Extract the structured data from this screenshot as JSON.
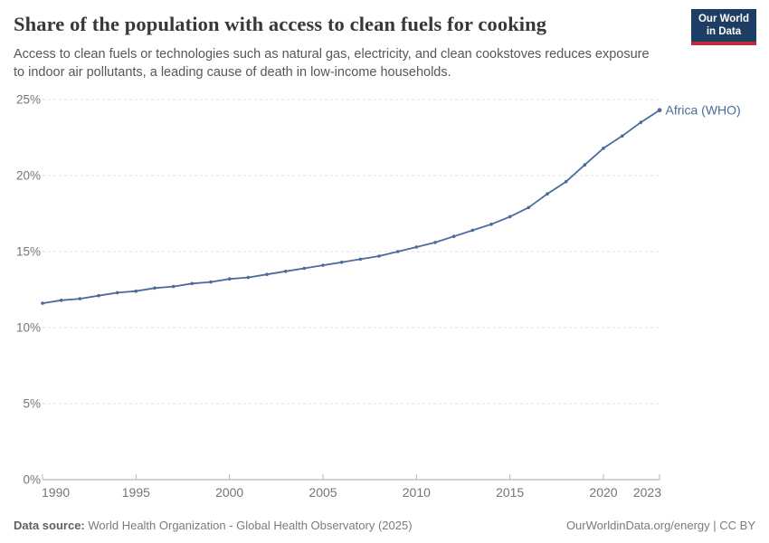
{
  "header": {
    "title": "Share of the population with access to clean fuels for cooking",
    "subtitle_lines": [
      "Access to clean fuels or technologies such as natural gas, electricity, and clean cookstoves reduces exposure",
      "to indoor air pollutants, a leading cause of death in low-income households."
    ]
  },
  "logo": {
    "line1": "Our World",
    "line2": "in Data",
    "bg_color": "#1d3d63",
    "accent_color": "#bf2b39"
  },
  "chart_data": {
    "type": "line",
    "title": "Share of the population with access to clean fuels for cooking",
    "x": [
      1990,
      1991,
      1992,
      1993,
      1994,
      1995,
      1996,
      1997,
      1998,
      1999,
      2000,
      2001,
      2002,
      2003,
      2004,
      2005,
      2006,
      2007,
      2008,
      2009,
      2010,
      2011,
      2012,
      2013,
      2014,
      2015,
      2016,
      2017,
      2018,
      2019,
      2020,
      2021,
      2022,
      2023
    ],
    "series": [
      {
        "name": "Africa (WHO)",
        "color": "#4C6A9C",
        "values": [
          11.6,
          11.8,
          11.9,
          12.1,
          12.3,
          12.4,
          12.6,
          12.7,
          12.9,
          13.0,
          13.2,
          13.3,
          13.5,
          13.7,
          13.9,
          14.1,
          14.3,
          14.5,
          14.7,
          15.0,
          15.3,
          15.6,
          16.0,
          16.4,
          16.8,
          17.3,
          17.9,
          18.8,
          19.6,
          20.7,
          21.8,
          22.6,
          23.5,
          24.3
        ]
      }
    ],
    "ylim": [
      0,
      25
    ],
    "yticks": [
      0,
      5,
      10,
      15,
      20,
      25
    ],
    "ytick_labels": [
      "0%",
      "5%",
      "10%",
      "15%",
      "20%",
      "25%"
    ],
    "xticks": [
      1990,
      1995,
      2000,
      2005,
      2010,
      2015,
      2020,
      2023
    ],
    "xlabel": "",
    "ylabel": "",
    "grid": "horizontal-dashed",
    "legend_position": "line-end-label"
  },
  "footer": {
    "source_label": "Data source:",
    "source_value": "World Health Organization - Global Health Observatory (2025)",
    "link_text": "OurWorldinData.org/energy | CC BY"
  }
}
